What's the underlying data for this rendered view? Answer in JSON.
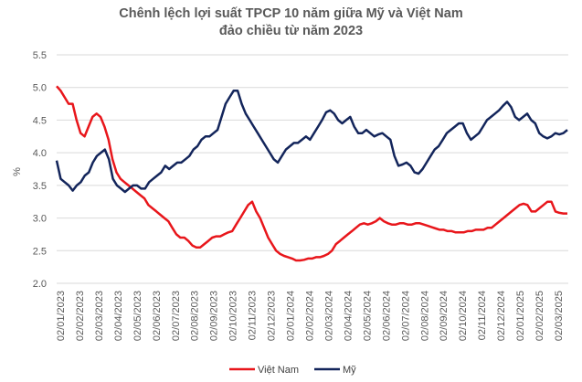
{
  "chart_data": {
    "type": "line",
    "title": "Chênh lệch lợi suất TPCP 10 năm giữa Mỹ và Việt Nam",
    "subtitle": "đảo chiều từ năm 2023",
    "xlabel": "",
    "ylabel": "%",
    "ylim": [
      2.0,
      5.5
    ],
    "y_ticks": [
      "5.5",
      "5.0",
      "4.5",
      "4.0",
      "3.5",
      "3.0",
      "2.5",
      "2.0"
    ],
    "x_ticks": [
      "02/01/2023",
      "02/02/2023",
      "02/03/2023",
      "02/04/2023",
      "02/05/2023",
      "02/06/2023",
      "02/07/2023",
      "02/08/2023",
      "02/09/2023",
      "02/10/2023",
      "02/11/2023",
      "02/12/2023",
      "02/01/2024",
      "02/02/2024",
      "02/03/2024",
      "02/04/2024",
      "02/05/2024",
      "02/06/2024",
      "02/07/2024",
      "02/08/2024",
      "02/09/2024",
      "02/10/2024",
      "02/11/2024",
      "02/12/2024",
      "02/01/2025",
      "02/02/2025",
      "02/03/2025"
    ],
    "grid": "horizontal",
    "legend_position": "bottom",
    "colors": {
      "vietnam": "#e8161b",
      "us": "#13255b",
      "grid": "#d9d9d9"
    },
    "series": [
      {
        "name": "Việt Nam",
        "values": [
          5.02,
          4.95,
          4.85,
          4.75,
          4.75,
          4.5,
          4.3,
          4.25,
          4.4,
          4.55,
          4.6,
          4.55,
          4.4,
          4.2,
          3.9,
          3.7,
          3.6,
          3.55,
          3.5,
          3.45,
          3.4,
          3.35,
          3.3,
          3.2,
          3.15,
          3.1,
          3.05,
          3.0,
          2.95,
          2.85,
          2.75,
          2.7,
          2.7,
          2.65,
          2.58,
          2.55,
          2.55,
          2.6,
          2.65,
          2.7,
          2.72,
          2.72,
          2.75,
          2.78,
          2.8,
          2.9,
          3.0,
          3.1,
          3.2,
          3.25,
          3.1,
          3.0,
          2.85,
          2.7,
          2.6,
          2.5,
          2.45,
          2.42,
          2.4,
          2.38,
          2.35,
          2.35,
          2.36,
          2.38,
          2.38,
          2.4,
          2.4,
          2.42,
          2.45,
          2.5,
          2.6,
          2.65,
          2.7,
          2.75,
          2.8,
          2.85,
          2.9,
          2.92,
          2.9,
          2.92,
          2.95,
          3.0,
          2.95,
          2.92,
          2.9,
          2.9,
          2.92,
          2.92,
          2.9,
          2.9,
          2.92,
          2.92,
          2.9,
          2.88,
          2.86,
          2.84,
          2.82,
          2.82,
          2.8,
          2.8,
          2.78,
          2.78,
          2.78,
          2.8,
          2.8,
          2.82,
          2.82,
          2.82,
          2.85,
          2.85,
          2.9,
          2.95,
          3.0,
          3.05,
          3.1,
          3.15,
          3.2,
          3.22,
          3.2,
          3.1,
          3.1,
          3.15,
          3.2,
          3.25,
          3.25,
          3.1,
          3.08,
          3.07,
          3.07
        ]
      },
      {
        "name": "Mỹ",
        "values": [
          3.88,
          3.6,
          3.55,
          3.5,
          3.42,
          3.5,
          3.55,
          3.65,
          3.7,
          3.85,
          3.95,
          4.0,
          4.05,
          3.9,
          3.6,
          3.5,
          3.45,
          3.4,
          3.45,
          3.5,
          3.5,
          3.45,
          3.45,
          3.55,
          3.6,
          3.65,
          3.7,
          3.8,
          3.75,
          3.8,
          3.85,
          3.85,
          3.9,
          3.95,
          4.05,
          4.1,
          4.2,
          4.25,
          4.25,
          4.3,
          4.35,
          4.55,
          4.75,
          4.85,
          4.95,
          4.95,
          4.75,
          4.6,
          4.5,
          4.4,
          4.3,
          4.2,
          4.1,
          4.0,
          3.9,
          3.85,
          3.95,
          4.05,
          4.1,
          4.15,
          4.15,
          4.2,
          4.25,
          4.2,
          4.3,
          4.4,
          4.5,
          4.62,
          4.65,
          4.6,
          4.5,
          4.45,
          4.5,
          4.55,
          4.4,
          4.3,
          4.3,
          4.35,
          4.3,
          4.25,
          4.28,
          4.3,
          4.25,
          4.2,
          3.95,
          3.8,
          3.82,
          3.85,
          3.8,
          3.7,
          3.68,
          3.75,
          3.85,
          3.95,
          4.05,
          4.1,
          4.2,
          4.3,
          4.35,
          4.4,
          4.45,
          4.45,
          4.3,
          4.2,
          4.25,
          4.3,
          4.4,
          4.5,
          4.55,
          4.6,
          4.65,
          4.72,
          4.78,
          4.7,
          4.55,
          4.5,
          4.55,
          4.6,
          4.5,
          4.45,
          4.3,
          4.25,
          4.22,
          4.25,
          4.3,
          4.28,
          4.3,
          4.35
        ]
      }
    ]
  }
}
